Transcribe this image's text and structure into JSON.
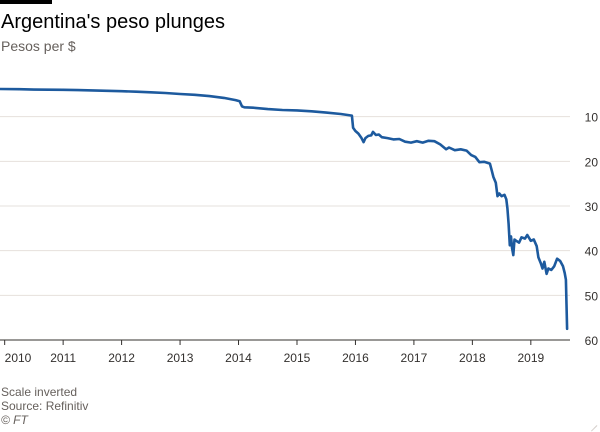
{
  "header": {
    "title": "Argentina's peso plunges",
    "subtitle": "Pesos per $"
  },
  "footer": {
    "note": "Scale inverted",
    "source": "Source: Refinitiv",
    "credit": "© FT"
  },
  "colors": {
    "line": "#1d5a9e",
    "grid": "#e6e1dc",
    "baseline": "#33302e",
    "text": "#33302e"
  },
  "chart_data": {
    "type": "line",
    "title": "Argentina's peso plunges",
    "subtitle": "Pesos per $",
    "xlabel": "",
    "ylabel": "Pesos per $",
    "y_inverted": true,
    "y_axis_position": "right",
    "grid": "horizontal",
    "xlim": [
      2009.92,
      2019.67
    ],
    "ylim": [
      0,
      60
    ],
    "y_ticks": [
      10,
      20,
      30,
      40,
      50,
      60
    ],
    "x_ticks": [
      2010,
      2011,
      2012,
      2013,
      2014,
      2015,
      2016,
      2017,
      2018,
      2019
    ],
    "series": [
      {
        "name": "",
        "points": [
          [
            2009.92,
            3.8
          ],
          [
            2010.25,
            3.85
          ],
          [
            2010.5,
            3.93
          ],
          [
            2010.75,
            3.96
          ],
          [
            2011.0,
            3.98
          ],
          [
            2011.25,
            4.05
          ],
          [
            2011.5,
            4.12
          ],
          [
            2011.75,
            4.22
          ],
          [
            2012.0,
            4.3
          ],
          [
            2012.25,
            4.4
          ],
          [
            2012.5,
            4.55
          ],
          [
            2012.75,
            4.7
          ],
          [
            2013.0,
            4.92
          ],
          [
            2013.25,
            5.1
          ],
          [
            2013.5,
            5.4
          ],
          [
            2013.75,
            5.8
          ],
          [
            2013.95,
            6.3
          ],
          [
            2014.02,
            6.55
          ],
          [
            2014.06,
            7.7
          ],
          [
            2014.1,
            7.9
          ],
          [
            2014.25,
            8.0
          ],
          [
            2014.5,
            8.3
          ],
          [
            2014.75,
            8.5
          ],
          [
            2015.0,
            8.6
          ],
          [
            2015.25,
            8.8
          ],
          [
            2015.5,
            9.1
          ],
          [
            2015.75,
            9.4
          ],
          [
            2015.94,
            9.75
          ],
          [
            2015.96,
            12.5
          ],
          [
            2016.0,
            13.2
          ],
          [
            2016.05,
            13.8
          ],
          [
            2016.1,
            14.7
          ],
          [
            2016.14,
            15.7
          ],
          [
            2016.17,
            14.8
          ],
          [
            2016.22,
            14.3
          ],
          [
            2016.27,
            14.2
          ],
          [
            2016.3,
            13.4
          ],
          [
            2016.35,
            14.1
          ],
          [
            2016.4,
            14.0
          ],
          [
            2016.45,
            14.6
          ],
          [
            2016.55,
            14.8
          ],
          [
            2016.65,
            15.1
          ],
          [
            2016.75,
            15.0
          ],
          [
            2016.85,
            15.6
          ],
          [
            2016.95,
            15.8
          ],
          [
            2017.05,
            15.5
          ],
          [
            2017.15,
            15.8
          ],
          [
            2017.25,
            15.4
          ],
          [
            2017.35,
            15.5
          ],
          [
            2017.45,
            16.2
          ],
          [
            2017.55,
            17.3
          ],
          [
            2017.6,
            16.9
          ],
          [
            2017.7,
            17.5
          ],
          [
            2017.8,
            17.3
          ],
          [
            2017.9,
            17.6
          ],
          [
            2017.98,
            18.6
          ],
          [
            2018.05,
            19.0
          ],
          [
            2018.12,
            20.2
          ],
          [
            2018.2,
            20.1
          ],
          [
            2018.3,
            20.5
          ],
          [
            2018.33,
            22.0
          ],
          [
            2018.36,
            23.5
          ],
          [
            2018.4,
            24.8
          ],
          [
            2018.43,
            27.8
          ],
          [
            2018.46,
            27.2
          ],
          [
            2018.5,
            27.8
          ],
          [
            2018.55,
            27.5
          ],
          [
            2018.58,
            28.5
          ],
          [
            2018.6,
            30.5
          ],
          [
            2018.62,
            34.0
          ],
          [
            2018.64,
            38.8
          ],
          [
            2018.66,
            36.8
          ],
          [
            2018.68,
            39.5
          ],
          [
            2018.7,
            41.0
          ],
          [
            2018.72,
            37.5
          ],
          [
            2018.75,
            37.8
          ],
          [
            2018.8,
            38.2
          ],
          [
            2018.84,
            37.0
          ],
          [
            2018.9,
            37.3
          ],
          [
            2018.94,
            36.5
          ],
          [
            2019.0,
            37.8
          ],
          [
            2019.05,
            37.5
          ],
          [
            2019.1,
            39.0
          ],
          [
            2019.13,
            41.5
          ],
          [
            2019.17,
            42.8
          ],
          [
            2019.2,
            44.0
          ],
          [
            2019.23,
            42.5
          ],
          [
            2019.27,
            45.2
          ],
          [
            2019.3,
            44.0
          ],
          [
            2019.35,
            44.3
          ],
          [
            2019.4,
            43.5
          ],
          [
            2019.45,
            41.8
          ],
          [
            2019.5,
            42.3
          ],
          [
            2019.55,
            43.5
          ],
          [
            2019.58,
            45.0
          ],
          [
            2019.6,
            46.5
          ],
          [
            2019.61,
            52.0
          ],
          [
            2019.62,
            57.5
          ]
        ]
      }
    ]
  }
}
